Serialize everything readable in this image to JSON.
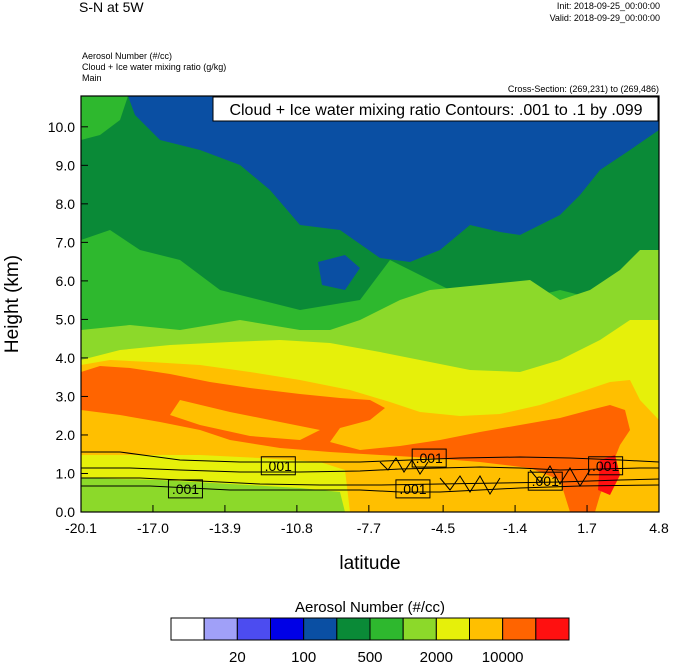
{
  "header": {
    "title": "S-N at 5W",
    "init": "Init: 2018-09-25_00:00:00",
    "valid": "Valid: 2018-09-29_00:00:00",
    "field1": "Aerosol Number   (#/cc)",
    "field2": "Cloud + Ice water mixing ratio   (g/kg)",
    "field3": "Main",
    "cross_section": "Cross-Section: (269,231) to (269,486)",
    "contour_info": "Cloud + Ice water mixing ratio Contours: .001 to .1 by .099"
  },
  "chart_data": {
    "type": "heatmap",
    "xlabel": "latitude",
    "ylabel": "Height (km)",
    "xlim": [
      -20.1,
      4.8
    ],
    "ylim": [
      0.0,
      10.8
    ],
    "x_ticks": [
      "-20.1",
      "-17.0",
      "-13.9",
      "-10.8",
      "-7.7",
      "-4.5",
      "-1.4",
      "1.7",
      "4.8"
    ],
    "y_ticks": [
      "0.0",
      "1.0",
      "2.0",
      "3.0",
      "4.0",
      "5.0",
      "6.0",
      "7.0",
      "8.0",
      "9.0",
      "10.0"
    ],
    "contour_labels": [
      {
        "text": ".001",
        "lat": -11.6,
        "height": 1.2
      },
      {
        "text": ".001",
        "lat": -15.6,
        "height": 0.6
      },
      {
        "text": ".001",
        "lat": -5.1,
        "height": 1.4
      },
      {
        "text": ".001",
        "lat": -5.8,
        "height": 0.6
      },
      {
        "text": ".001",
        "lat": -0.1,
        "height": 0.8
      },
      {
        "text": ".001",
        "lat": 2.5,
        "height": 1.2
      }
    ],
    "colorbar": {
      "title": "Aerosol Number  (#/cc)",
      "colors": [
        "#ffffff",
        "#a0a0f8",
        "#4c4cf0",
        "#0000e6",
        "#0a4fa3",
        "#0a8a37",
        "#2eb82e",
        "#8cd92a",
        "#e6f00a",
        "#ffbf00",
        "#ff6400",
        "#ff1010"
      ],
      "labels": [
        "20",
        "100",
        "500",
        "2000",
        "10000"
      ]
    }
  }
}
